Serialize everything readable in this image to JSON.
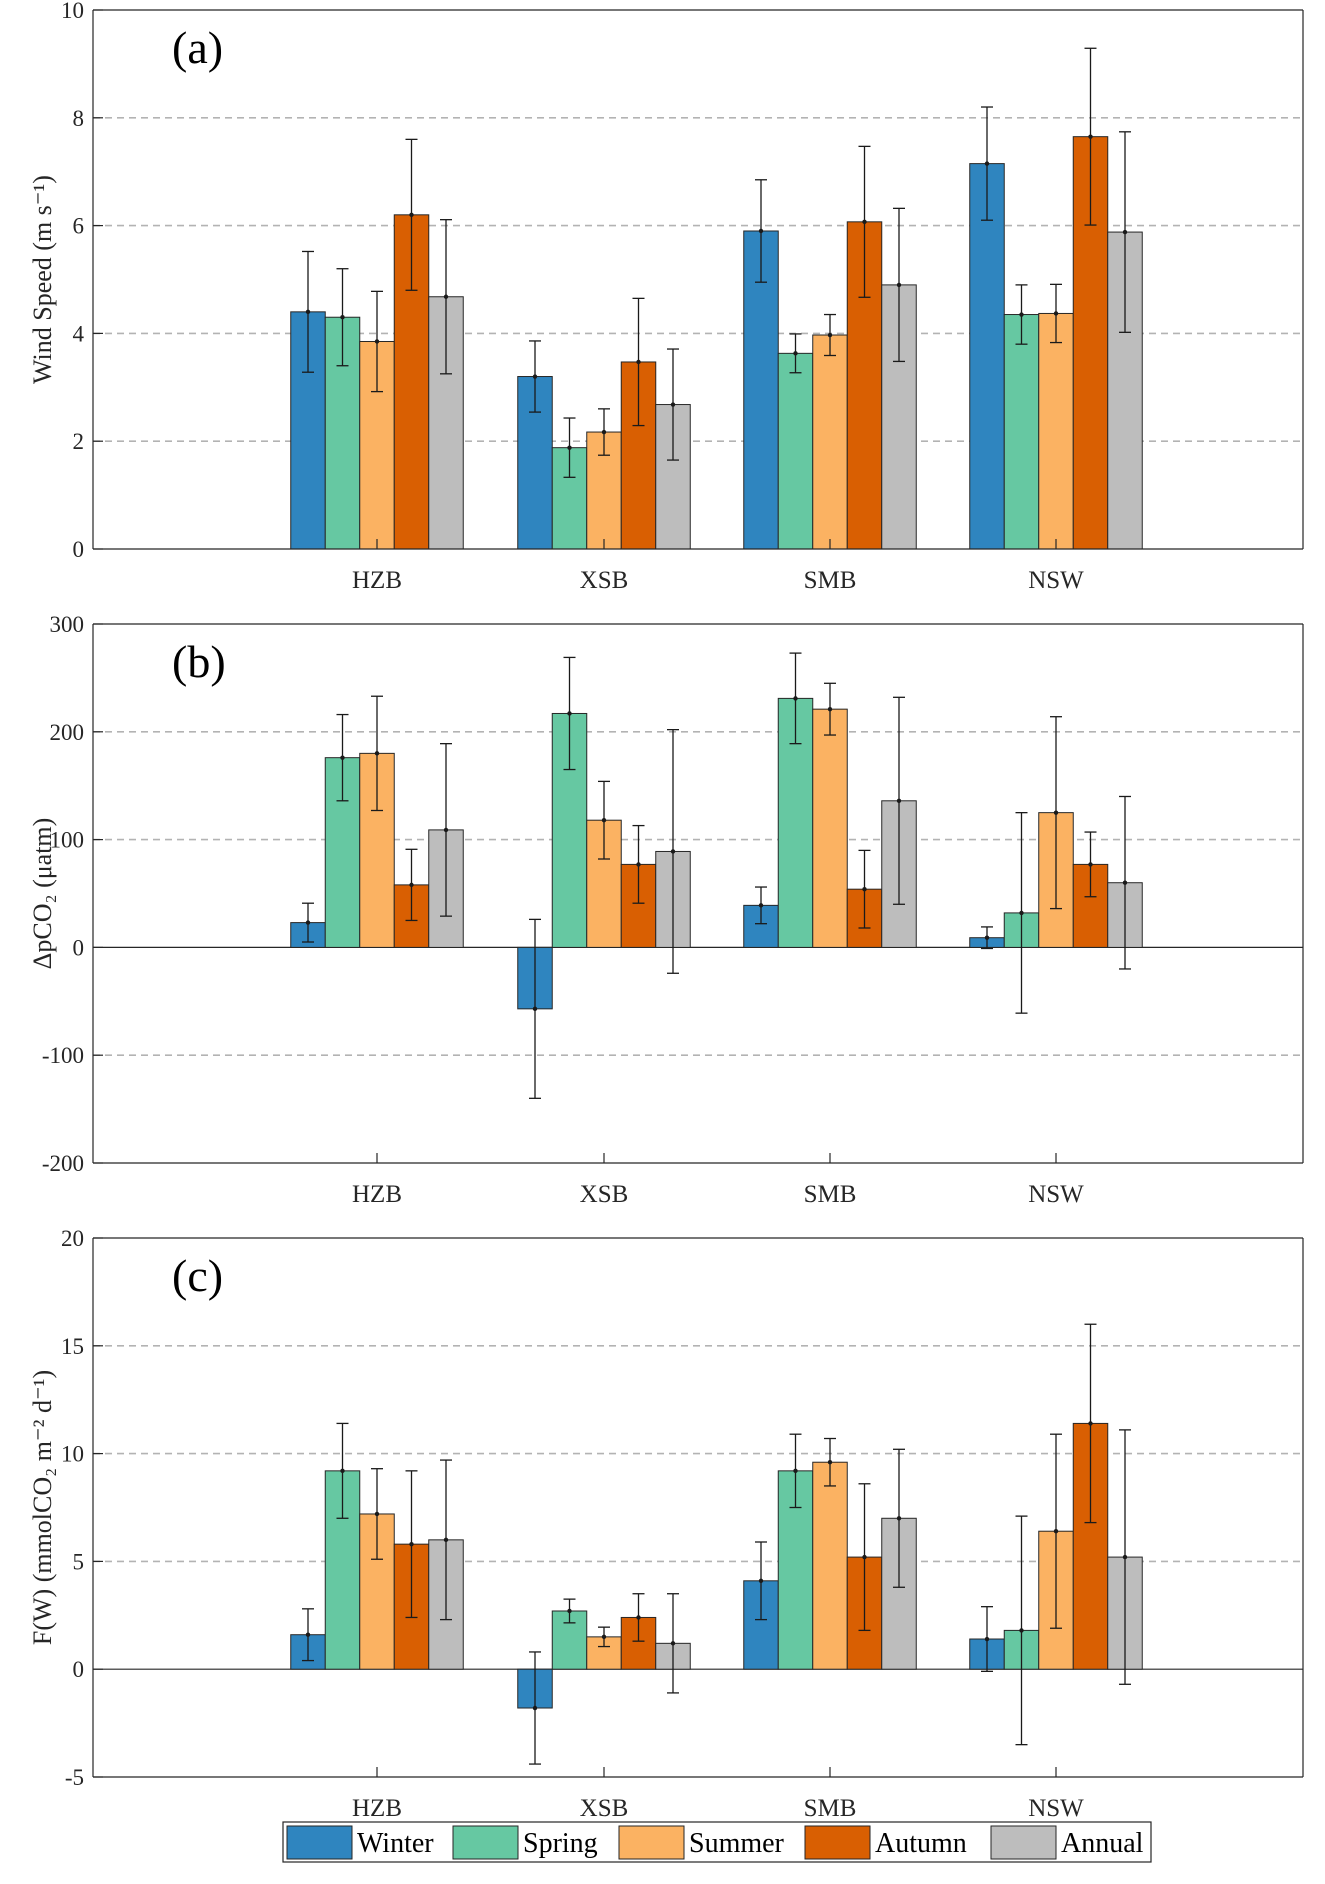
{
  "colors": {
    "Winter": "#2f85bf",
    "Spring": "#66c8a2",
    "Summer": "#fbb262",
    "Autumn": "#d95f02",
    "Annual": "#bdbdbd"
  },
  "legend": [
    "Winter",
    "Spring",
    "Summer",
    "Autumn",
    "Annual"
  ],
  "chart_data": [
    {
      "type": "bar",
      "panel_label": "(a)",
      "ylabel": "Wind Speed (m s⁻¹)",
      "ylim": [
        0,
        10
      ],
      "yticks": [
        0,
        2,
        4,
        6,
        8,
        10
      ],
      "ytick_labels": [
        "0",
        "2",
        "4",
        "6",
        "8",
        "10"
      ],
      "grid_values": [
        2,
        4,
        6,
        8
      ],
      "zero_line": false,
      "categories": [
        "HZB",
        "XSB",
        "SMB",
        "NSW"
      ],
      "series": [
        {
          "name": "Winter",
          "values": [
            4.4,
            3.2,
            5.9,
            7.15
          ],
          "errors": [
            1.12,
            0.66,
            0.95,
            1.05
          ]
        },
        {
          "name": "Spring",
          "values": [
            4.3,
            1.88,
            3.63,
            4.35
          ],
          "errors": [
            0.9,
            0.55,
            0.36,
            0.55
          ]
        },
        {
          "name": "Summer",
          "values": [
            3.85,
            2.17,
            3.97,
            4.37
          ],
          "errors": [
            0.93,
            0.43,
            0.38,
            0.54
          ]
        },
        {
          "name": "Autumn",
          "values": [
            6.2,
            3.47,
            6.07,
            7.65
          ],
          "errors": [
            1.4,
            1.18,
            1.4,
            1.64
          ]
        },
        {
          "name": "Annual",
          "values": [
            4.68,
            2.68,
            4.9,
            5.88
          ],
          "errors": [
            1.43,
            1.03,
            1.42,
            1.86
          ]
        }
      ]
    },
    {
      "type": "bar",
      "panel_label": "(b)",
      "ylabel": "ΔpCO₂ (μatm)",
      "ylim": [
        -200,
        300
      ],
      "yticks": [
        -200,
        -100,
        0,
        100,
        200,
        300
      ],
      "ytick_labels": [
        "-200",
        "-100",
        "0",
        "100",
        "200",
        "300"
      ],
      "grid_values": [
        -100,
        100,
        200
      ],
      "zero_line": true,
      "categories": [
        "HZB",
        "XSB",
        "SMB",
        "NSW"
      ],
      "series": [
        {
          "name": "Winter",
          "values": [
            23,
            -57,
            39,
            9
          ],
          "errors": [
            18,
            83,
            17,
            10
          ]
        },
        {
          "name": "Spring",
          "values": [
            176,
            217,
            231,
            32
          ],
          "errors": [
            40,
            52,
            42,
            93
          ]
        },
        {
          "name": "Summer",
          "values": [
            180,
            118,
            221,
            125
          ],
          "errors": [
            53,
            36,
            24,
            89
          ]
        },
        {
          "name": "Autumn",
          "values": [
            58,
            77,
            54,
            77
          ],
          "errors": [
            33,
            36,
            36,
            30
          ]
        },
        {
          "name": "Annual",
          "values": [
            109,
            89,
            136,
            60
          ],
          "errors": [
            80,
            113,
            96,
            80
          ]
        }
      ]
    },
    {
      "type": "bar",
      "panel_label": "(c)",
      "ylabel": "F(W) (mmolCO₂ m⁻² d⁻¹)",
      "ylim": [
        -5,
        20
      ],
      "yticks": [
        -5,
        0,
        5,
        10,
        15,
        20
      ],
      "ytick_labels": [
        "-5",
        "0",
        "5",
        "10",
        "15",
        "20"
      ],
      "grid_values": [
        5,
        10,
        15
      ],
      "zero_line": true,
      "categories": [
        "HZB",
        "XSB",
        "SMB",
        "NSW"
      ],
      "series": [
        {
          "name": "Winter",
          "values": [
            1.6,
            -1.8,
            4.1,
            1.4
          ],
          "errors": [
            1.2,
            2.6,
            1.8,
            1.5
          ]
        },
        {
          "name": "Spring",
          "values": [
            9.2,
            2.7,
            9.2,
            1.8
          ],
          "errors": [
            2.2,
            0.55,
            1.7,
            5.3
          ]
        },
        {
          "name": "Summer",
          "values": [
            7.2,
            1.5,
            9.6,
            6.4
          ],
          "errors": [
            2.1,
            0.45,
            1.1,
            4.5
          ]
        },
        {
          "name": "Autumn",
          "values": [
            5.8,
            2.4,
            5.2,
            11.4
          ],
          "errors": [
            3.4,
            1.1,
            3.4,
            4.6
          ]
        },
        {
          "name": "Annual",
          "values": [
            6.0,
            1.2,
            7.0,
            5.2
          ],
          "errors": [
            3.7,
            2.3,
            3.2,
            5.9
          ]
        }
      ]
    }
  ]
}
